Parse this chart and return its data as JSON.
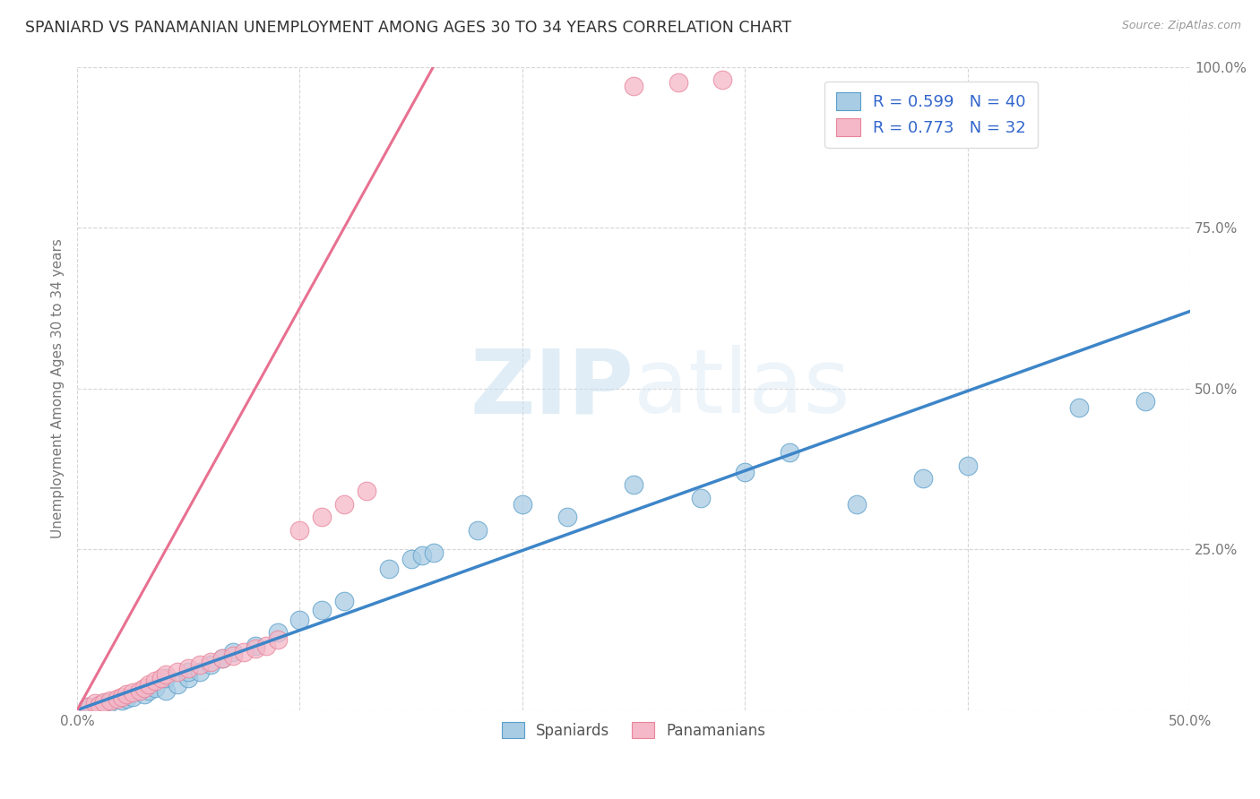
{
  "title": "SPANIARD VS PANAMANIAN UNEMPLOYMENT AMONG AGES 30 TO 34 YEARS CORRELATION CHART",
  "source": "Source: ZipAtlas.com",
  "ylabel": "Unemployment Among Ages 30 to 34 years",
  "xlim": [
    0.0,
    0.5
  ],
  "ylim": [
    0.0,
    1.0
  ],
  "xticks": [
    0.0,
    0.1,
    0.2,
    0.3,
    0.4,
    0.5
  ],
  "yticks": [
    0.0,
    0.25,
    0.5,
    0.75,
    1.0
  ],
  "watermark_zip": "ZIP",
  "watermark_atlas": "atlas",
  "legend_r1": "R = 0.599",
  "legend_n1": "N = 40",
  "legend_r2": "R = 0.773",
  "legend_n2": "N = 32",
  "color_blue": "#a8cce4",
  "color_pink": "#f4b8c8",
  "color_blue_edge": "#5a9ec9",
  "color_pink_edge": "#e8849a",
  "color_blue_line": "#3d85c8",
  "color_pink_line": "#e87090",
  "blue_scatter_x": [
    0.005,
    0.01,
    0.012,
    0.015,
    0.02,
    0.022,
    0.025,
    0.03,
    0.032,
    0.035,
    0.04,
    0.04,
    0.045,
    0.05,
    0.05,
    0.055,
    0.06,
    0.065,
    0.07,
    0.08,
    0.09,
    0.1,
    0.11,
    0.12,
    0.14,
    0.15,
    0.155,
    0.16,
    0.18,
    0.2,
    0.22,
    0.25,
    0.28,
    0.3,
    0.32,
    0.35,
    0.38,
    0.4,
    0.45,
    0.48
  ],
  "blue_scatter_y": [
    0.005,
    0.008,
    0.01,
    0.012,
    0.015,
    0.018,
    0.02,
    0.025,
    0.03,
    0.035,
    0.03,
    0.05,
    0.04,
    0.05,
    0.06,
    0.06,
    0.07,
    0.08,
    0.09,
    0.1,
    0.12,
    0.14,
    0.155,
    0.17,
    0.22,
    0.235,
    0.24,
    0.245,
    0.28,
    0.32,
    0.3,
    0.35,
    0.33,
    0.37,
    0.4,
    0.32,
    0.36,
    0.38,
    0.47,
    0.48
  ],
  "pink_scatter_x": [
    0.005,
    0.008,
    0.01,
    0.012,
    0.015,
    0.018,
    0.02,
    0.022,
    0.025,
    0.028,
    0.03,
    0.032,
    0.035,
    0.038,
    0.04,
    0.045,
    0.05,
    0.055,
    0.06,
    0.065,
    0.07,
    0.075,
    0.08,
    0.085,
    0.09,
    0.1,
    0.11,
    0.12,
    0.13,
    0.25,
    0.27,
    0.29
  ],
  "pink_scatter_y": [
    0.005,
    0.01,
    0.008,
    0.012,
    0.015,
    0.018,
    0.02,
    0.025,
    0.028,
    0.03,
    0.035,
    0.04,
    0.045,
    0.05,
    0.055,
    0.06,
    0.065,
    0.07,
    0.075,
    0.08,
    0.085,
    0.09,
    0.095,
    0.1,
    0.11,
    0.28,
    0.3,
    0.32,
    0.34,
    0.97,
    0.975,
    0.98
  ],
  "blue_line_x": [
    0.0,
    0.5
  ],
  "blue_line_y": [
    0.0,
    0.62
  ],
  "pink_line_x": [
    0.0,
    0.16
  ],
  "pink_line_y": [
    0.0,
    1.0
  ]
}
